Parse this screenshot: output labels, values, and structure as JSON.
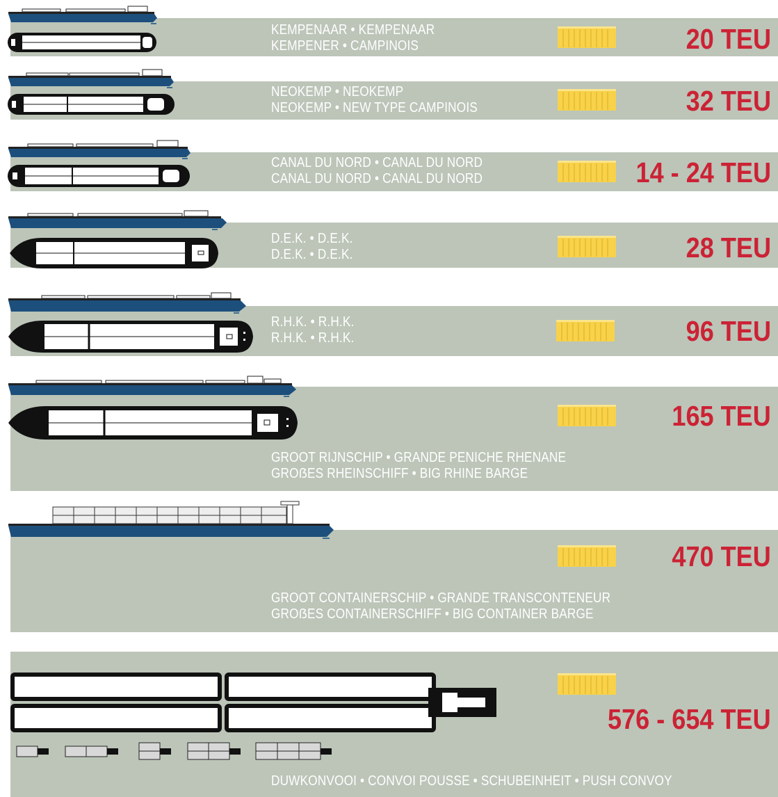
{
  "colors": {
    "band": "#bcc5b8",
    "hull_blue": "#1d4f7c",
    "teu_red": "#cc2235",
    "container_yellow": "#f7d24a",
    "deck_dark": "#111111"
  },
  "icons": {
    "container": "container-icon",
    "ship_profile": "ship-side-view-icon",
    "ship_plan": "ship-top-view-icon"
  },
  "vessels": [
    {
      "names": [
        "KEMPENAAR • KEMPENAAR",
        "KEMPENER • CAMPINOIS"
      ],
      "capacity": "20 TEU"
    },
    {
      "names": [
        "NEOKEMP • NEOKEMP",
        "NEOKEMP • NEW TYPE CAMPINOIS"
      ],
      "capacity": "32 TEU"
    },
    {
      "names": [
        "CANAL DU NORD • CANAL DU NORD",
        "CANAL DU NORD • CANAL DU NORD"
      ],
      "capacity": "14 - 24 TEU"
    },
    {
      "names": [
        "D.E.K. • D.E.K.",
        "D.E.K. • D.E.K."
      ],
      "capacity": "28 TEU"
    },
    {
      "names": [
        "R.H.K. • R.H.K.",
        "R.H.K. • R.H.K."
      ],
      "capacity": "96 TEU"
    },
    {
      "names": [
        "GROOT RIJNSCHIP • GRANDE PENICHE RHENANE",
        "GROẞES RHEINSCHIFF • BIG RHINE BARGE"
      ],
      "capacity": "165 TEU"
    },
    {
      "names": [
        "GROOT CONTAINERSCHIP • GRANDE TRANSCONTENEUR",
        "GROẞES CONTAINERSCHIFF • BIG CONTAINER BARGE"
      ],
      "capacity": "470 TEU"
    },
    {
      "names": [
        "DUWKONVOOI • CONVOI POUSSE • SCHUBEINHEIT • PUSH CONVOY"
      ],
      "capacity": "576 - 654 TEU"
    }
  ]
}
